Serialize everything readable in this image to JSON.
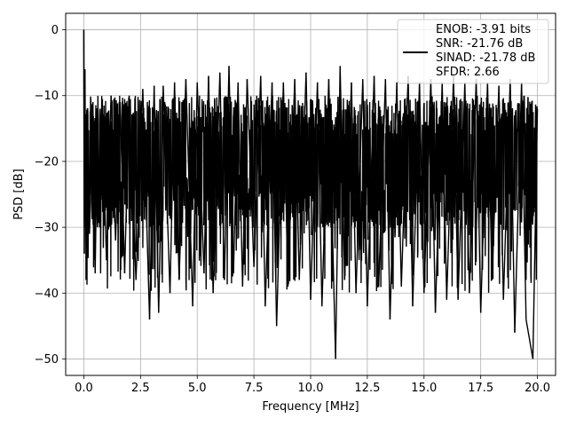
{
  "chart_data": {
    "type": "line",
    "xlabel": "Frequency [MHz]",
    "ylabel": "PSD [dB]",
    "xlim": [
      -0.8,
      20.8
    ],
    "ylim": [
      -52.5,
      2.5
    ],
    "x_ticks": [
      0.0,
      2.5,
      5.0,
      7.5,
      10.0,
      12.5,
      15.0,
      17.5,
      20.0
    ],
    "x_tick_labels": [
      "0.0",
      "2.5",
      "5.0",
      "7.5",
      "10.0",
      "12.5",
      "15.0",
      "17.5",
      "20.0"
    ],
    "y_ticks": [
      0,
      -10,
      -20,
      -30,
      -40,
      -50
    ],
    "y_tick_labels": [
      "0",
      "−10",
      "−20",
      "−30",
      "−40",
      "−50"
    ],
    "grid": true,
    "legend_position": "top-right",
    "series": [
      {
        "color": "#000000",
        "description_x": [
          0.0,
          0.02,
          0.05,
          0.1,
          0.15,
          0.25,
          0.4,
          0.5,
          0.6,
          0.7,
          0.8,
          1.0,
          1.2,
          1.4,
          1.6,
          1.8,
          2.0,
          2.3,
          2.6,
          2.9,
          3.1,
          3.3,
          3.5,
          3.8,
          4.0,
          4.2,
          4.5,
          4.8,
          5.0,
          5.3,
          5.5,
          5.7,
          6.0,
          6.2,
          6.4,
          6.6,
          6.8,
          7.0,
          7.2,
          7.5,
          7.8,
          8.0,
          8.3,
          8.5,
          8.8,
          9.0,
          9.3,
          9.5,
          9.8,
          10.0,
          10.3,
          10.5,
          10.8,
          11.1,
          11.3,
          11.5,
          11.8,
          12.0,
          12.3,
          12.5,
          12.8,
          13.0,
          13.3,
          13.5,
          13.8,
          14.0,
          14.3,
          14.5,
          14.8,
          15.0,
          15.3,
          15.5,
          15.8,
          16.0,
          16.3,
          16.5,
          16.8,
          17.0,
          17.3,
          17.5,
          17.8,
          18.0,
          18.3,
          18.5,
          18.8,
          19.0,
          19.3,
          19.5,
          19.8,
          20.0
        ],
        "description_y": [
          0.0,
          -34.0,
          -6.0,
          -38.0,
          -12.0,
          -31.0,
          -11.0,
          -37.0,
          -13.0,
          -30.0,
          -12.0,
          -35.0,
          -10.0,
          -32.0,
          -11.0,
          -37.0,
          -10.0,
          -38.0,
          -9.0,
          -44.0,
          -8.5,
          -43.0,
          -8.5,
          -40.0,
          -8.0,
          -38.0,
          -7.5,
          -42.0,
          -8.0,
          -37.0,
          -7.0,
          -40.0,
          -6.5,
          -38.0,
          -5.5,
          -37.0,
          -8.0,
          -39.0,
          -7.5,
          -36.0,
          -7.0,
          -42.0,
          -8.0,
          -45.0,
          -8.0,
          -39.0,
          -7.5,
          -38.0,
          -6.5,
          -41.0,
          -8.0,
          -42.0,
          -7.5,
          -50.0,
          -5.5,
          -38.0,
          -8.0,
          -40.0,
          -7.5,
          -42.0,
          -7.0,
          -39.0,
          -7.5,
          -44.0,
          -8.0,
          -39.0,
          -7.0,
          -42.0,
          -8.0,
          -40.0,
          -7.5,
          -43.0,
          -8.0,
          -41.0,
          -7.0,
          -41.0,
          -8.0,
          -40.0,
          -7.5,
          -43.0,
          -8.0,
          -38.0,
          -8.5,
          -41.0,
          -7.5,
          -46.0,
          -8.0,
          -44.0,
          -50.0,
          -12.0
        ]
      }
    ],
    "legend_entries": [
      "ENOB: -3.91 bits",
      "SNR: -21.76 dB",
      "SINAD: -21.78 dB",
      "SFDR: 2.66"
    ]
  }
}
